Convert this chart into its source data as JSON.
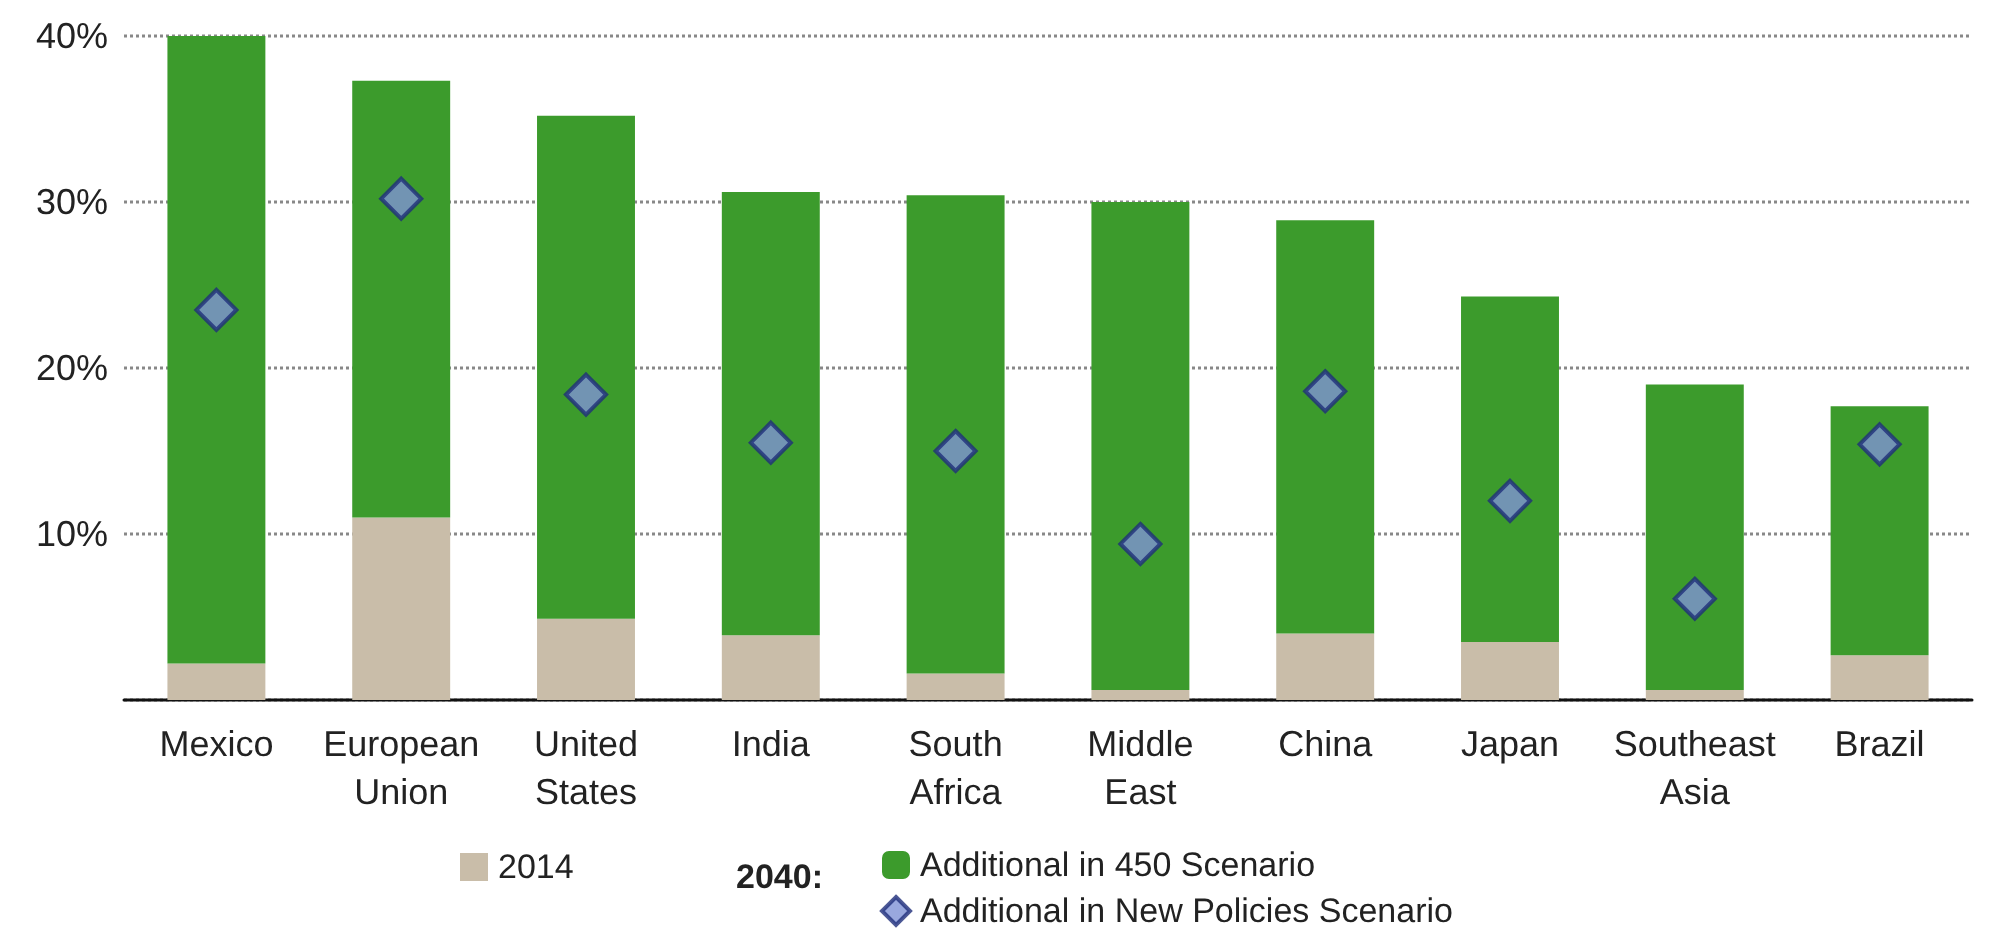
{
  "chart_data": {
    "type": "bar",
    "stacked": true,
    "categories": [
      "Mexico",
      "European\nUnion",
      "United\nStates",
      "India",
      "South\nAfrica",
      "Middle\nEast",
      "China",
      "Japan",
      "Southeast\nAsia",
      "Brazil"
    ],
    "series": [
      {
        "name": "2014",
        "color": "#c9bda9",
        "values": [
          2.2,
          11,
          4.9,
          3.9,
          1.6,
          0.6,
          4,
          3.5,
          0.6,
          2.7
        ]
      },
      {
        "name": "Additional in 450 Scenario",
        "color": "#3c9b2c",
        "values": [
          37.8,
          26.3,
          30.3,
          26.7,
          28.8,
          29.4,
          24.9,
          20.8,
          18.4,
          15.0
        ]
      },
      {
        "name": "Additional in New Policies Scenario",
        "type": "scatter",
        "color": "#7f92d6",
        "x": [
          "Mexico",
          "European\nUnion",
          "United\nStates",
          "India",
          "South\nAfrica",
          "Middle\nEast",
          "China",
          "Japan",
          "Southeast\nAsia",
          "Brazil"
        ],
        "values": [
          23.5,
          30.2,
          18.4,
          15.5,
          15,
          9.4,
          18.6,
          12,
          6.1,
          15.4
        ]
      }
    ],
    "legend_title": "2040:",
    "legend": "bottom",
    "grid": "y",
    "marker": "diamond",
    "ylim": [
      0,
      40
    ],
    "yticks": [
      {
        "value": 0,
        "label": null
      },
      {
        "value": 10,
        "label": "10%"
      },
      {
        "value": 20,
        "label": "20%"
      },
      {
        "value": 30,
        "label": "30%"
      },
      {
        "value": 40,
        "label": "40%"
      }
    ]
  }
}
